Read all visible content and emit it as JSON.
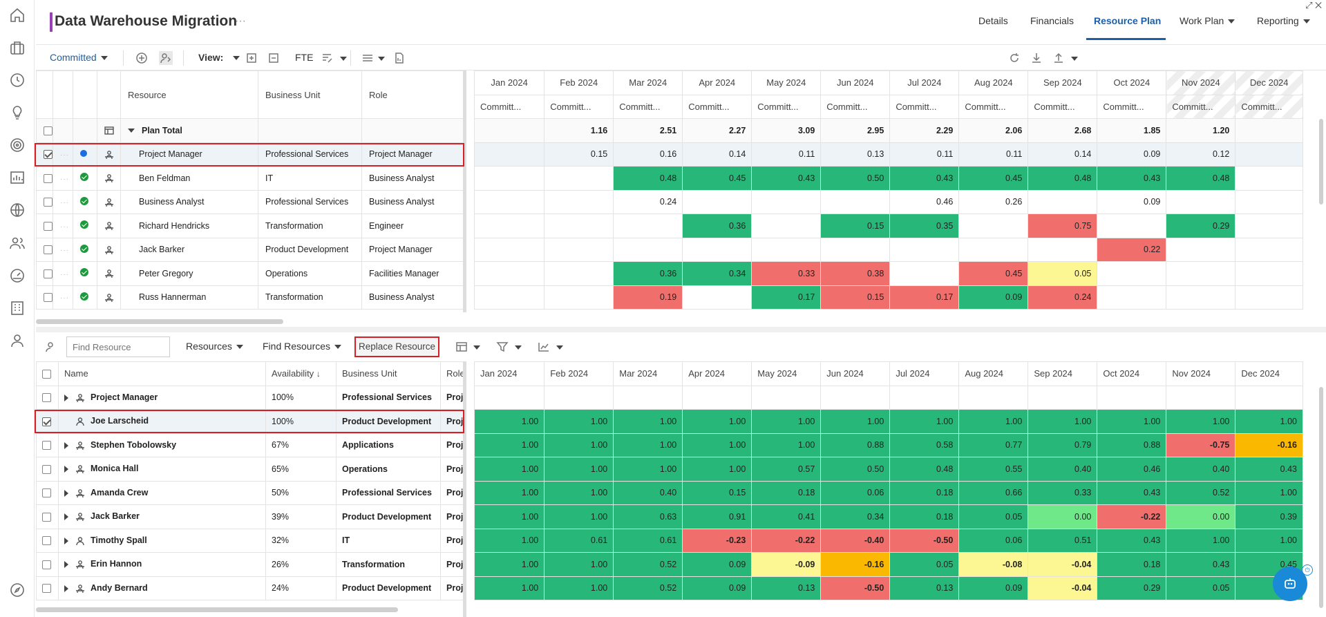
{
  "app": {
    "title": "Data Warehouse Migration",
    "title_menu": "···",
    "nav": [
      {
        "label": "Details"
      },
      {
        "label": "Financials"
      },
      {
        "label": "Resource Plan"
      },
      {
        "label": "Work Plan"
      },
      {
        "label": "Reporting"
      }
    ],
    "active_tab": "Resource Plan",
    "window_controls": "⤢ ✕"
  },
  "toolbar": {
    "mode": "Committed",
    "view_label": "View:",
    "fte_label": "FTE"
  },
  "plan": {
    "headers": {
      "resource": "Resource",
      "business_unit": "Business Unit",
      "role": "Role"
    },
    "months": [
      "Jan 2024",
      "Feb 2024",
      "Mar 2024",
      "Apr 2024",
      "May 2024",
      "Jun 2024",
      "Jul 2024",
      "Aug 2024",
      "Sep 2024",
      "Oct 2024",
      "Nov 2024",
      "Dec 2024"
    ],
    "sub_label": "Committ...",
    "total": {
      "label": "Plan Total",
      "values": [
        "",
        "1.16",
        "2.51",
        "2.27",
        "3.09",
        "2.95",
        "2.29",
        "2.06",
        "2.68",
        "1.85",
        "1.20",
        ""
      ]
    },
    "rows": [
      {
        "resource": "Project Manager",
        "business_unit": "Professional Services",
        "role": "Project Manager",
        "status": "blue",
        "checked": true,
        "values": [
          "",
          "0.15",
          "0.16",
          "0.14",
          "0.11",
          "0.13",
          "0.11",
          "0.11",
          "0.14",
          "0.09",
          "0.12",
          ""
        ],
        "colors": [
          "",
          "",
          "",
          "",
          "",
          "",
          "",
          "",
          "",
          "",
          "",
          ""
        ]
      },
      {
        "resource": "Ben Feldman",
        "business_unit": "IT",
        "role": "Business Analyst",
        "status": "green",
        "checked": false,
        "values": [
          "",
          "",
          "0.48",
          "0.45",
          "0.43",
          "0.50",
          "0.43",
          "0.45",
          "0.48",
          "0.43",
          "0.48",
          ""
        ],
        "colors": [
          "",
          "",
          "g",
          "g",
          "g",
          "g",
          "g",
          "g",
          "g",
          "g",
          "g",
          ""
        ]
      },
      {
        "resource": "Business Analyst",
        "business_unit": "Professional Services",
        "role": "Business Analyst",
        "status": "green",
        "checked": false,
        "values": [
          "",
          "",
          "0.24",
          "",
          "",
          "",
          "0.46",
          "0.26",
          "",
          "0.09",
          "",
          ""
        ],
        "colors": [
          "",
          "",
          "",
          "",
          "",
          "",
          "",
          "",
          "",
          "",
          "",
          ""
        ]
      },
      {
        "resource": "Richard Hendricks",
        "business_unit": "Transformation",
        "role": "Engineer",
        "status": "green",
        "checked": false,
        "values": [
          "",
          "",
          "",
          "0.36",
          "",
          "0.15",
          "0.35",
          "",
          "0.75",
          "",
          "0.29",
          ""
        ],
        "colors": [
          "",
          "",
          "",
          "g",
          "",
          "g",
          "g",
          "",
          "r",
          "",
          "g",
          ""
        ]
      },
      {
        "resource": "Jack Barker",
        "business_unit": "Product Development",
        "role": "Project Manager",
        "status": "green",
        "checked": false,
        "values": [
          "",
          "",
          "",
          "",
          "",
          "",
          "",
          "",
          "",
          "0.22",
          "",
          ""
        ],
        "colors": [
          "",
          "",
          "",
          "",
          "",
          "",
          "",
          "",
          "",
          "r",
          "",
          ""
        ]
      },
      {
        "resource": "Peter Gregory",
        "business_unit": "Operations",
        "role": "Facilities Manager",
        "status": "green",
        "checked": false,
        "values": [
          "",
          "",
          "0.36",
          "0.34",
          "0.33",
          "0.38",
          "",
          "0.45",
          "0.05",
          "",
          "",
          ""
        ],
        "colors": [
          "",
          "",
          "g",
          "g",
          "r",
          "r",
          "",
          "r",
          "y",
          "",
          "",
          ""
        ]
      },
      {
        "resource": "Russ Hannerman",
        "business_unit": "Transformation",
        "role": "Business Analyst",
        "status": "green",
        "checked": false,
        "values": [
          "",
          "",
          "0.19",
          "",
          "0.17",
          "0.15",
          "0.17",
          "0.09",
          "0.24",
          "",
          "",
          ""
        ],
        "colors": [
          "",
          "",
          "r",
          "",
          "g",
          "r",
          "r",
          "g",
          "r",
          "",
          "",
          ""
        ]
      }
    ]
  },
  "finder": {
    "search_placeholder": "Find Resource",
    "resources_label": "Resources",
    "find_label": "Find Resources",
    "replace_label": "Replace Resource",
    "headers": {
      "name": "Name",
      "availability": "Availability",
      "business_unit": "Business Unit",
      "role": "Role"
    },
    "months": [
      "Jan 2024",
      "Feb 2024",
      "Mar 2024",
      "Apr 2024",
      "May 2024",
      "Jun 2024",
      "Jul 2024",
      "Aug 2024",
      "Sep 2024",
      "Oct 2024",
      "Nov 2024",
      "Dec 2024"
    ],
    "rows": [
      {
        "name": "Project Manager",
        "availability": "100%",
        "business_unit": "Professional Services",
        "role": "Proje",
        "checked": false,
        "icon": "role",
        "values": [
          "",
          "",
          "",
          "",
          "",
          "",
          "",
          "",
          "",
          "",
          "",
          ""
        ],
        "colors": [
          "",
          "",
          "",
          "",
          "",
          "",
          "",
          "",
          "",
          "",
          "",
          ""
        ]
      },
      {
        "name": "Joe Larscheid",
        "availability": "100%",
        "business_unit": "Product Development",
        "role": "Proje",
        "checked": true,
        "icon": "person",
        "values": [
          "1.00",
          "1.00",
          "1.00",
          "1.00",
          "1.00",
          "1.00",
          "1.00",
          "1.00",
          "1.00",
          "1.00",
          "1.00",
          "1.00"
        ],
        "colors": [
          "g",
          "g",
          "g",
          "g",
          "g",
          "g",
          "g",
          "g",
          "g",
          "g",
          "g",
          "g"
        ]
      },
      {
        "name": "Stephen Tobolowsky",
        "availability": "67%",
        "business_unit": "Applications",
        "role": "Proje",
        "checked": false,
        "icon": "role",
        "values": [
          "1.00",
          "1.00",
          "1.00",
          "1.00",
          "1.00",
          "0.88",
          "0.58",
          "0.77",
          "0.79",
          "0.88",
          "-0.75",
          "-0.16"
        ],
        "colors": [
          "g",
          "g",
          "g",
          "g",
          "g",
          "g",
          "g",
          "g",
          "g",
          "g",
          "r",
          "o"
        ]
      },
      {
        "name": "Monica Hall",
        "availability": "65%",
        "business_unit": "Operations",
        "role": "Proje",
        "checked": false,
        "icon": "role",
        "values": [
          "1.00",
          "1.00",
          "1.00",
          "1.00",
          "0.57",
          "0.50",
          "0.48",
          "0.55",
          "0.40",
          "0.46",
          "0.40",
          "0.43"
        ],
        "colors": [
          "g",
          "g",
          "g",
          "g",
          "g",
          "g",
          "g",
          "g",
          "g",
          "g",
          "g",
          "g"
        ]
      },
      {
        "name": "Amanda Crew",
        "availability": "50%",
        "business_unit": "Professional Services",
        "role": "Proje",
        "checked": false,
        "icon": "role",
        "values": [
          "1.00",
          "1.00",
          "0.40",
          "0.15",
          "0.18",
          "0.06",
          "0.18",
          "0.66",
          "0.33",
          "0.43",
          "0.52",
          "1.00"
        ],
        "colors": [
          "g",
          "g",
          "g",
          "g",
          "g",
          "g",
          "g",
          "g",
          "g",
          "g",
          "g",
          "g"
        ]
      },
      {
        "name": "Jack Barker",
        "availability": "39%",
        "business_unit": "Product Development",
        "role": "Proje",
        "checked": false,
        "icon": "role",
        "values": [
          "1.00",
          "1.00",
          "0.63",
          "0.91",
          "0.41",
          "0.34",
          "0.18",
          "0.05",
          "0.00",
          "-0.22",
          "0.00",
          "0.39"
        ],
        "colors": [
          "g",
          "g",
          "g",
          "g",
          "g",
          "g",
          "g",
          "g",
          "lg",
          "r",
          "lg",
          "g"
        ]
      },
      {
        "name": "Timothy Spall",
        "availability": "32%",
        "business_unit": "IT",
        "role": "Proje",
        "checked": false,
        "icon": "person",
        "values": [
          "1.00",
          "0.61",
          "0.61",
          "-0.23",
          "-0.22",
          "-0.40",
          "-0.50",
          "0.06",
          "0.51",
          "0.43",
          "1.00",
          "1.00"
        ],
        "colors": [
          "g",
          "g",
          "g",
          "r",
          "r",
          "r",
          "r",
          "g",
          "g",
          "g",
          "g",
          "g"
        ]
      },
      {
        "name": "Erin Hannon",
        "availability": "26%",
        "business_unit": "Transformation",
        "role": "Proje",
        "checked": false,
        "icon": "role",
        "values": [
          "1.00",
          "1.00",
          "0.52",
          "0.09",
          "-0.09",
          "-0.16",
          "0.05",
          "-0.08",
          "-0.04",
          "0.18",
          "0.43",
          "0.45"
        ],
        "colors": [
          "g",
          "g",
          "g",
          "g",
          "y",
          "o",
          "g",
          "y",
          "y",
          "g",
          "g",
          "g"
        ]
      },
      {
        "name": "Andy Bernard",
        "availability": "24%",
        "business_unit": "Product Development",
        "role": "Proje",
        "checked": false,
        "icon": "role",
        "values": [
          "1.00",
          "1.00",
          "0.52",
          "0.09",
          "0.13",
          "-0.50",
          "0.13",
          "0.09",
          "-0.04",
          "0.29",
          "0.05",
          ""
        ],
        "colors": [
          "g",
          "g",
          "g",
          "g",
          "g",
          "r",
          "g",
          "g",
          "y",
          "g",
          "g",
          "g"
        ]
      }
    ]
  },
  "colors": {
    "accent": "#9b3fb5",
    "active_tab": "#1c5fa8",
    "highlight": "#d81f26",
    "good": "#27b779",
    "over": "#f06e6b",
    "warn": "#fcf792",
    "orange": "#fbb800"
  }
}
